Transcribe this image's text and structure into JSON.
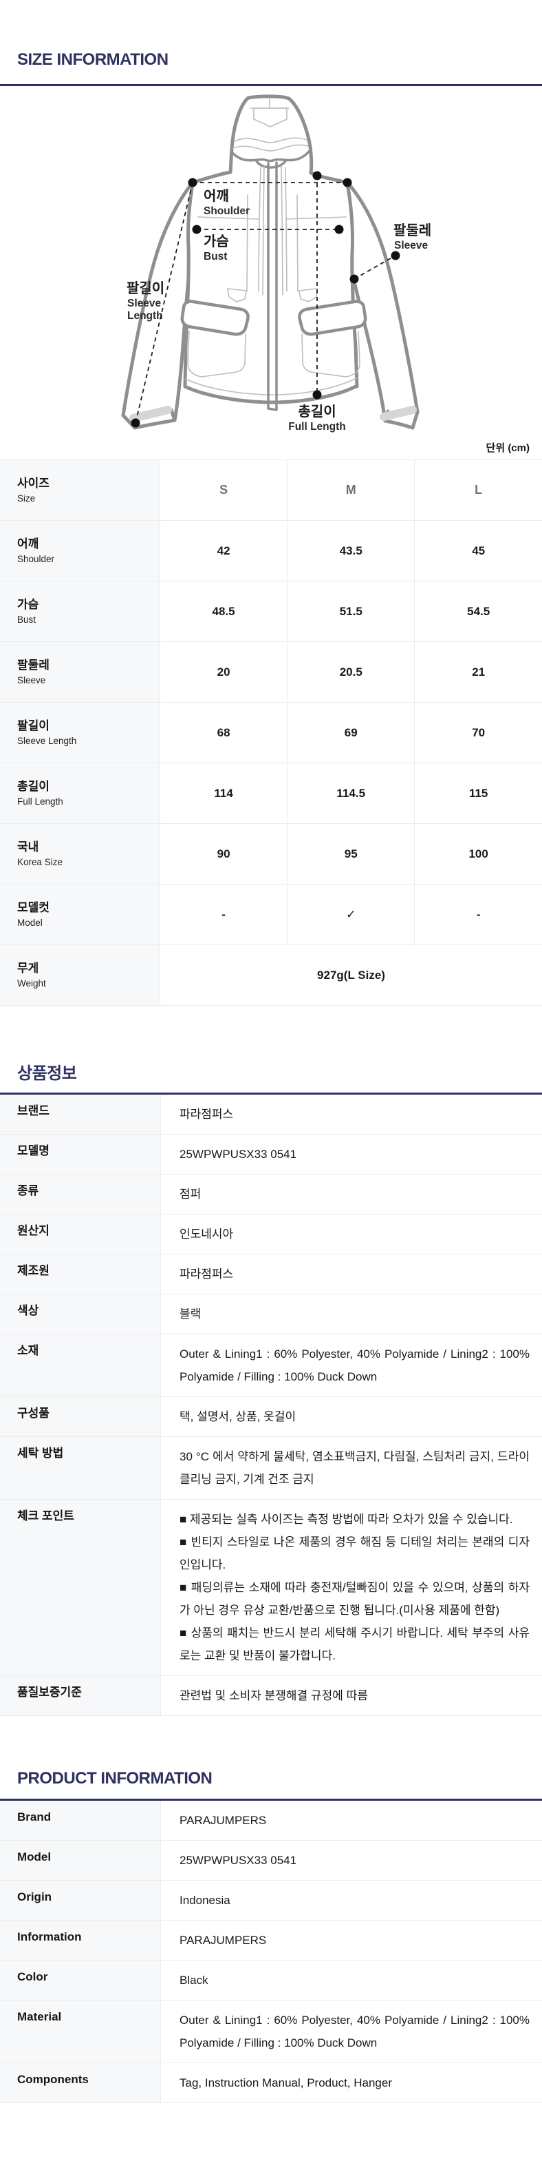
{
  "colors": {
    "accent_navy": "#2f3160",
    "label_column_bg": "#f7f8fa",
    "table_border": "#ececec",
    "muted_header_gray": "#707070"
  },
  "unit_label": "단위 (cm)",
  "size_section": {
    "title": "SIZE INFORMATION",
    "diagram_labels": {
      "shoulder": {
        "ko": "어깨",
        "en": "Shoulder"
      },
      "bust": {
        "ko": "가슴",
        "en": "Bust"
      },
      "sleeve": {
        "ko": "팔둘레",
        "en": "Sleeve"
      },
      "sleeve_length": {
        "ko": "팔길이",
        "en": "Sleeve Length",
        "en_lines": [
          "Sleeve",
          "Length"
        ]
      },
      "full_length": {
        "ko": "총길이",
        "en": "Full Length"
      }
    },
    "table": {
      "header": {
        "ko": "사이즈",
        "en": "Size"
      },
      "columns": [
        "S",
        "M",
        "L"
      ],
      "rows": [
        {
          "ko": "어깨",
          "en": "Shoulder",
          "values": [
            "42",
            "43.5",
            "45"
          ]
        },
        {
          "ko": "가슴",
          "en": "Bust",
          "values": [
            "48.5",
            "51.5",
            "54.5"
          ]
        },
        {
          "ko": "팔둘레",
          "en": "Sleeve",
          "values": [
            "20",
            "20.5",
            "21"
          ]
        },
        {
          "ko": "팔길이",
          "en": "Sleeve Length",
          "values": [
            "68",
            "69",
            "70"
          ]
        },
        {
          "ko": "총길이",
          "en": "Full Length",
          "values": [
            "114",
            "114.5",
            "115"
          ]
        },
        {
          "ko": "국내",
          "en": "Korea Size",
          "values": [
            "90",
            "95",
            "100"
          ]
        },
        {
          "ko": "모델컷",
          "en": "Model",
          "values": [
            "-",
            "✓",
            "-"
          ]
        }
      ],
      "weight_row": {
        "ko": "무게",
        "en": "Weight",
        "value": "927g(L Size)"
      }
    }
  },
  "product_info_ko": {
    "title": "상품정보",
    "rows": [
      {
        "label": "브랜드",
        "lines": [
          "파라점퍼스"
        ]
      },
      {
        "label": "모델명",
        "lines": [
          "25WPWPUSX33 0541"
        ]
      },
      {
        "label": "종류",
        "lines": [
          "점퍼"
        ]
      },
      {
        "label": "원산지",
        "lines": [
          "인도네시아"
        ]
      },
      {
        "label": "제조원",
        "lines": [
          "파라점퍼스"
        ]
      },
      {
        "label": "색상",
        "lines": [
          "블랙"
        ]
      },
      {
        "label": "소재",
        "lines": [
          "Outer & Lining1 : 60% Polyester, 40% Polyamide / Lining2 : 100% Polyamide / Filling : 100% Duck Down"
        ]
      },
      {
        "label": "구성품",
        "lines": [
          "택, 설명서, 상품, 옷걸이"
        ]
      },
      {
        "label": "세탁 방법",
        "lines": [
          "30 °C 에서 약하게 물세탁, 염소표백금지, 다림질, 스팀처리 금지, 드라이클리닝 금지, 기계 건조 금지"
        ]
      },
      {
        "label": "체크 포인트",
        "lines": [
          "■ 제공되는 실측 사이즈는 측정 방법에 따라 오차가 있을 수 있습니다.",
          "■ 빈티지 스타일로 나온 제품의 경우 해짐 등 디테일 처리는 본래의 디자인입니다.",
          "■ 패딩의류는 소재에 따라 충전재/털빠짐이 있을 수 있으며, 상품의 하자가 아닌 경우 유상 교환/반품으로 진행 됩니다.(미사용 제품에 한함)",
          "■ 상품의 패치는 반드시 분리 세탁해 주시기 바랍니다. 세탁 부주의 사유로는 교환 및 반품이 불가합니다."
        ]
      },
      {
        "label": "품질보증기준",
        "lines": [
          "관련법 및 소비자 분쟁해결 규정에 따름"
        ]
      }
    ]
  },
  "product_info_en": {
    "title": "PRODUCT INFORMATION",
    "rows": [
      {
        "label": "Brand",
        "lines": [
          "PARAJUMPERS"
        ]
      },
      {
        "label": "Model",
        "lines": [
          "25WPWPUSX33 0541"
        ]
      },
      {
        "label": "Origin",
        "lines": [
          "Indonesia"
        ]
      },
      {
        "label": "Information",
        "lines": [
          "PARAJUMPERS"
        ]
      },
      {
        "label": "Color",
        "lines": [
          "Black"
        ]
      },
      {
        "label": "Material",
        "lines": [
          "Outer & Lining1 : 60% Polyester, 40% Polyamide / Lining2 : 100% Polyamide / Filling : 100% Duck Down"
        ]
      },
      {
        "label": "Components",
        "lines": [
          "Tag, Instruction Manual, Product, Hanger"
        ]
      }
    ]
  }
}
